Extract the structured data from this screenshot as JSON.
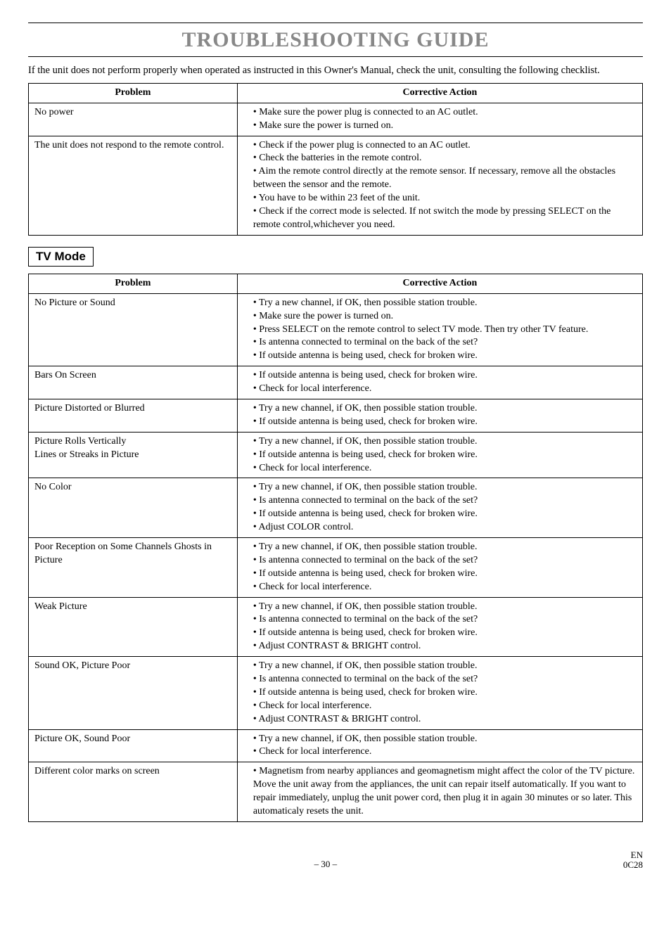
{
  "page": {
    "title": "TROUBLESHOOTING GUIDE",
    "lead": "If the unit does not perform properly when operated as instructed in this Owner's Manual, check the unit, consulting the following checklist.",
    "footer_page": "– 30 –",
    "footer_lang": "EN",
    "footer_code": "0C28"
  },
  "table1": {
    "headers": [
      "Problem",
      "Corrective Action"
    ],
    "rows": [
      {
        "problem": "No power",
        "actions": [
          "Make sure the power plug is connected to an AC outlet.",
          "Make sure the power is turned on."
        ]
      },
      {
        "problem": "The unit does not respond to the remote control.",
        "actions": [
          "Check if the power plug is connected to an AC outlet.",
          "Check the batteries in the remote control.",
          "Aim the remote control directly at the remote sensor. If necessary, remove all the obstacles between the sensor and the remote.",
          "You have to be within 23 feet of the unit.",
          "Check if the correct mode is selected. If not switch the mode by pressing SELECT on the remote control,whichever you need."
        ]
      }
    ]
  },
  "mode_heading": "TV Mode",
  "table2": {
    "headers": [
      "Problem",
      "Corrective Action"
    ],
    "rows": [
      {
        "problem": "No Picture or Sound",
        "actions": [
          "Try a new channel, if OK, then possible station trouble.",
          "Make sure the power is turned on.",
          "Press SELECT on the remote control to select TV mode. Then try other TV feature.",
          "Is antenna connected to terminal on the back of the set?",
          "If outside antenna is being used, check for broken wire."
        ]
      },
      {
        "problem": "Bars On Screen",
        "actions": [
          "If outside antenna is being used, check for broken wire.",
          "Check for local interference."
        ]
      },
      {
        "problem": "Picture Distorted or Blurred",
        "actions": [
          "Try a new channel, if OK, then possible station trouble.",
          "If outside antenna is being used, check for broken wire."
        ]
      },
      {
        "problem": "Picture Rolls Vertically\nLines or Streaks in Picture",
        "actions": [
          "Try a new channel, if OK, then possible station trouble.",
          "If outside antenna is being used, check for broken wire.",
          "Check for local interference."
        ]
      },
      {
        "problem": "No Color",
        "actions": [
          "Try a new channel, if OK, then possible station trouble.",
          "Is antenna connected to terminal on the back of the set?",
          "If outside antenna is being used, check for broken wire.",
          "Adjust COLOR control."
        ]
      },
      {
        "problem": "Poor Reception on Some Channels Ghosts in Picture",
        "actions": [
          "Try a new channel, if OK, then possible station trouble.",
          "Is antenna connected to terminal on the back of the set?",
          "If outside antenna is being used, check for broken wire.",
          "Check for local interference."
        ]
      },
      {
        "problem": "Weak Picture",
        "actions": [
          "Try a new channel, if OK, then possible station trouble.",
          "Is antenna connected to terminal on the back of the set?",
          "If outside antenna is being used, check for broken wire.",
          "Adjust CONTRAST & BRIGHT control."
        ]
      },
      {
        "problem": "Sound OK, Picture Poor",
        "actions": [
          "Try a new channel, if OK, then possible station trouble.",
          "Is antenna connected to terminal on the back of the set?",
          "If outside antenna is being used, check for broken wire.",
          "Check for local interference.",
          "Adjust CONTRAST & BRIGHT control."
        ]
      },
      {
        "problem": "Picture OK, Sound Poor",
        "actions": [
          "Try a new channel, if OK, then possible station trouble.",
          "Check for local interference."
        ]
      },
      {
        "problem": "Different color marks on screen",
        "actions": [
          "Magnetism from nearby appliances and geomagnetism might affect the color of the TV picture. Move the unit away from the appliances, the unit can repair itself automatically. If you want to repair immediately, unplug the unit power cord, then plug it in again 30 minutes or so later. This automaticaly resets the unit."
        ]
      }
    ]
  }
}
